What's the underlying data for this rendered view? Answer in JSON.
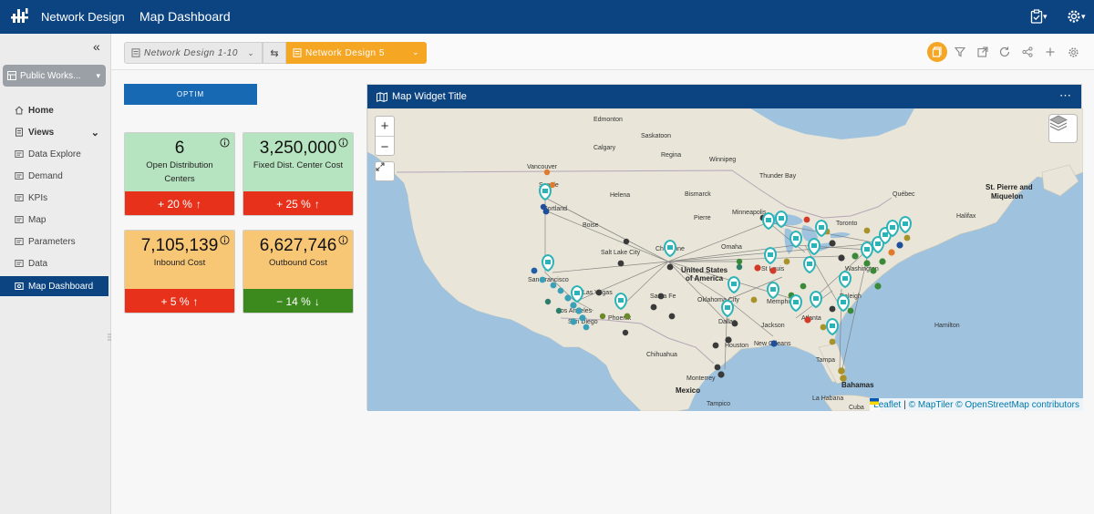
{
  "header": {
    "app_name": "Network Design",
    "page_title": "Map Dashboard"
  },
  "sidebar": {
    "workspace": "Public Works...",
    "items": [
      {
        "label": "Home"
      },
      {
        "label": "Views"
      },
      {
        "label": "Data Explore"
      },
      {
        "label": "Demand"
      },
      {
        "label": "KPIs"
      },
      {
        "label": "Map"
      },
      {
        "label": "Parameters"
      },
      {
        "label": "Data"
      },
      {
        "label": "Map Dashboard"
      }
    ]
  },
  "toolbar": {
    "scenario_a": "Network Design 1-10",
    "scenario_b": "Network Design 5"
  },
  "optim_label": "OPTIM",
  "kpis": [
    {
      "value": "6",
      "label": "Open Distribution Centers",
      "change": "+ 20 %",
      "direction": "up",
      "status_color": "#e8311a"
    },
    {
      "value": "3,250,000",
      "label": "Fixed Dist. Center Cost",
      "change": "+ 25 %",
      "direction": "up",
      "status_color": "#e8311a"
    },
    {
      "value": "7,105,139",
      "label": "Inbound Cost",
      "change": "+ 5 %",
      "direction": "up",
      "status_color": "#e8311a"
    },
    {
      "value": "6,627,746",
      "label": "Outbound Cost",
      "change": "− 14 %",
      "direction": "down",
      "status_color": "#3c8a1e"
    }
  ],
  "map_widget": {
    "title": "Map Widget Title",
    "zoom_in": "+",
    "zoom_out": "−",
    "attribution": {
      "leaflet": "Leaflet",
      "sep": "|",
      "rest": "© MapTiler © OpenStreetMap contributors"
    },
    "cities": {
      "edmonton": "Edmonton",
      "saskatoon": "Saskatoon",
      "calgary": "Calgary",
      "regina": "Regina",
      "winnipeg": "Winnipeg",
      "vancouver": "Vancouver",
      "seattle": "Seattle",
      "thunder_bay": "Thunder Bay",
      "helena": "Helena",
      "bismarck": "Bismarck",
      "quebec": "Québec",
      "portland": "Portland",
      "minneapolis": "Minneapolis",
      "pierre": "Pierre",
      "st_pierre_1": "St. Pierre and",
      "st_pierre_2": "Miquelon",
      "halifax": "Halifax",
      "boise": "Boise",
      "toronto": "Toronto",
      "salt_lake": "Salt Lake City",
      "cheyenne": "Cheyenne",
      "omaha": "Omaha",
      "us_1": "United States",
      "us_2": "of America",
      "st_louis": "St Louis",
      "washington": "Washington",
      "san_francisco": "San Francisco",
      "las_vegas": "Las Vegas",
      "santa_fe": "Santa Fe",
      "oklahoma": "Oklahoma City",
      "raleigh": "Raleigh",
      "memphis": "Memphis",
      "los_angeles": "Los Angeles",
      "san_diego": "San Diego",
      "phoenix": "Phoenix",
      "atlanta": "Atlanta",
      "dallas": "Dallas",
      "jackson": "Jackson",
      "hamilton": "Hamilton",
      "chihuahua": "Chihuahua",
      "houston": "Houston",
      "new_orleans": "New Orleans",
      "tampa": "Tampa",
      "bahamas": "Bahamas",
      "monterrey": "Monterrey",
      "mexico": "Mexico",
      "la_habana": "La Habana",
      "tampico": "Tampico",
      "cuba": "Cuba"
    }
  }
}
